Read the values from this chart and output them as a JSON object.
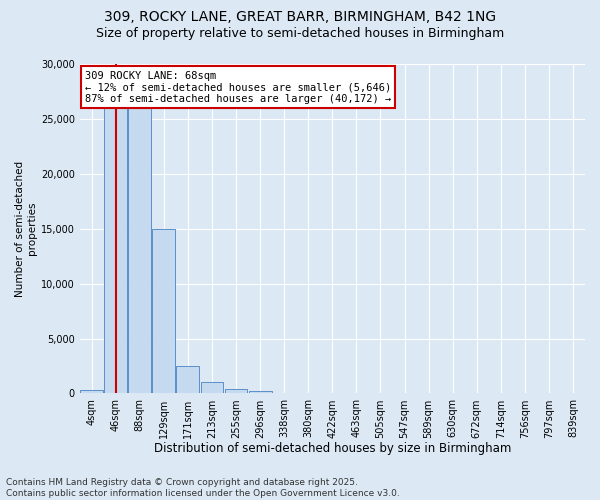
{
  "title1": "309, ROCKY LANE, GREAT BARR, BIRMINGHAM, B42 1NG",
  "title2": "Size of property relative to semi-detached houses in Birmingham",
  "xlabel": "Distribution of semi-detached houses by size in Birmingham",
  "ylabel": "Number of semi-detached\nproperties",
  "categories": [
    "4sqm",
    "46sqm",
    "88sqm",
    "129sqm",
    "171sqm",
    "213sqm",
    "255sqm",
    "296sqm",
    "338sqm",
    "380sqm",
    "422sqm",
    "463sqm",
    "505sqm",
    "547sqm",
    "589sqm",
    "630sqm",
    "672sqm",
    "714sqm",
    "756sqm",
    "797sqm",
    "839sqm"
  ],
  "values": [
    300,
    26000,
    26000,
    15000,
    2500,
    1000,
    400,
    200,
    50,
    0,
    0,
    0,
    0,
    0,
    0,
    0,
    0,
    0,
    0,
    0,
    0
  ],
  "bar_color": "#c5d9ef",
  "bar_edge_color": "#5b8fc9",
  "property_sqm": 68,
  "annotation_text": "309 ROCKY LANE: 68sqm\n← 12% of semi-detached houses are smaller (5,646)\n87% of semi-detached houses are larger (40,172) →",
  "ylim": [
    0,
    30000
  ],
  "yticks": [
    0,
    5000,
    10000,
    15000,
    20000,
    25000,
    30000
  ],
  "background_color": "#dce9f5",
  "plot_bg_color": "#dce9f5",
  "footer_text": "Contains HM Land Registry data © Crown copyright and database right 2025.\nContains public sector information licensed under the Open Government Licence v3.0.",
  "vline_color": "#cc0000",
  "annotation_box_color": "#cc0000",
  "title1_fontsize": 10,
  "title2_fontsize": 9,
  "xlabel_fontsize": 8.5,
  "ylabel_fontsize": 7.5,
  "tick_fontsize": 7,
  "footer_fontsize": 6.5,
  "annot_fontsize": 7.5
}
